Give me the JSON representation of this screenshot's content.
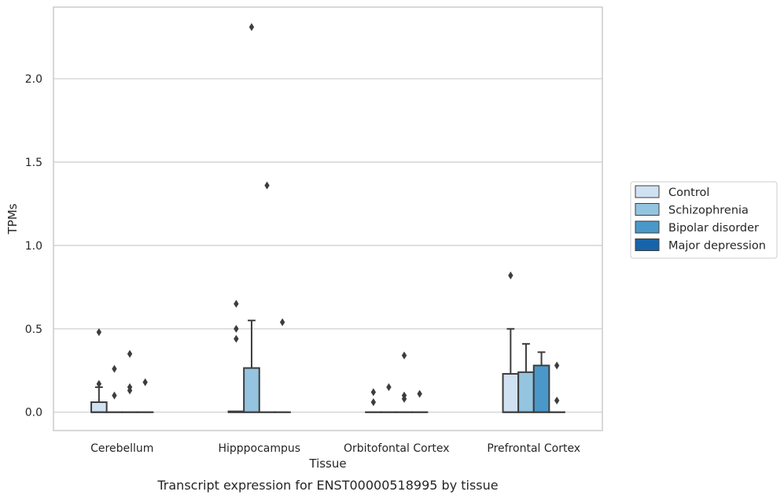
{
  "caption": "Transcript expression for ENST00000518995 by tissue",
  "chart_data": {
    "type": "box",
    "xlabel": "Tissue",
    "ylabel": "TPMs",
    "ylim": [
      -0.11,
      2.43
    ],
    "yticks": [
      0.0,
      0.5,
      1.0,
      1.5,
      2.0
    ],
    "ytick_labels": [
      "0.0",
      "0.5",
      "1.0",
      "1.5",
      "2.0"
    ],
    "grid": "horizontal",
    "legend_position": "right",
    "categories": [
      "Cerebellum",
      "Hipppocampus",
      "Orbitofontal Cortex",
      "Prefrontal Cortex"
    ],
    "series": [
      {
        "name": "Control",
        "color": "#d0e1f2"
      },
      {
        "name": "Schizophrenia",
        "color": "#94c4df"
      },
      {
        "name": "Bipolar disorder",
        "color": "#4a98c9"
      },
      {
        "name": "Major depression",
        "color": "#1764ab"
      }
    ],
    "boxes": [
      [
        {
          "q1": 0,
          "median": 0,
          "q3": 0.06,
          "whisker_low": 0,
          "whisker_high": 0.15,
          "outliers": [
            0.17,
            0.48
          ]
        },
        {
          "q1": 0,
          "median": 0,
          "q3": 0,
          "whisker_low": 0,
          "whisker_high": 0,
          "outliers": [
            0.1,
            0.26
          ]
        },
        {
          "q1": 0,
          "median": 0,
          "q3": 0,
          "whisker_low": 0,
          "whisker_high": 0,
          "outliers": [
            0.13,
            0.15,
            0.35
          ]
        },
        {
          "q1": 0,
          "median": 0,
          "q3": 0,
          "whisker_low": 0,
          "whisker_high": 0,
          "outliers": [
            0.18
          ]
        }
      ],
      [
        {
          "q1": 0,
          "median": 0,
          "q3": 0.005,
          "whisker_low": 0,
          "whisker_high": 0.005,
          "outliers": [
            0.44,
            0.5,
            0.65
          ]
        },
        {
          "q1": 0,
          "median": 0,
          "q3": 0.265,
          "whisker_low": 0,
          "whisker_high": 0.55,
          "outliers": [
            2.31
          ]
        },
        {
          "q1": 0,
          "median": 0,
          "q3": 0,
          "whisker_low": 0,
          "whisker_high": 0,
          "outliers": [
            1.36
          ]
        },
        {
          "q1": 0,
          "median": 0,
          "q3": 0,
          "whisker_low": 0,
          "whisker_high": 0,
          "outliers": [
            0.54
          ]
        }
      ],
      [
        {
          "q1": 0,
          "median": 0,
          "q3": 0,
          "whisker_low": 0,
          "whisker_high": 0,
          "outliers": [
            0.06,
            0.12
          ]
        },
        {
          "q1": 0,
          "median": 0,
          "q3": 0,
          "whisker_low": 0,
          "whisker_high": 0,
          "outliers": [
            0.15
          ]
        },
        {
          "q1": 0,
          "median": 0,
          "q3": 0,
          "whisker_low": 0,
          "whisker_high": 0,
          "outliers": [
            0.08,
            0.1,
            0.34
          ]
        },
        {
          "q1": 0,
          "median": 0,
          "q3": 0,
          "whisker_low": 0,
          "whisker_high": 0,
          "outliers": [
            0.11
          ]
        }
      ],
      [
        {
          "q1": 0,
          "median": 0,
          "q3": 0.23,
          "whisker_low": 0,
          "whisker_high": 0.5,
          "outliers": [
            0.82
          ]
        },
        {
          "q1": 0,
          "median": 0,
          "q3": 0.24,
          "whisker_low": 0,
          "whisker_high": 0.41,
          "outliers": []
        },
        {
          "q1": 0,
          "median": 0,
          "q3": 0.28,
          "whisker_low": 0,
          "whisker_high": 0.36,
          "outliers": []
        },
        {
          "q1": 0,
          "median": 0,
          "q3": 0,
          "whisker_low": 0,
          "whisker_high": 0,
          "outliers": [
            0.07,
            0.28
          ]
        }
      ]
    ]
  }
}
